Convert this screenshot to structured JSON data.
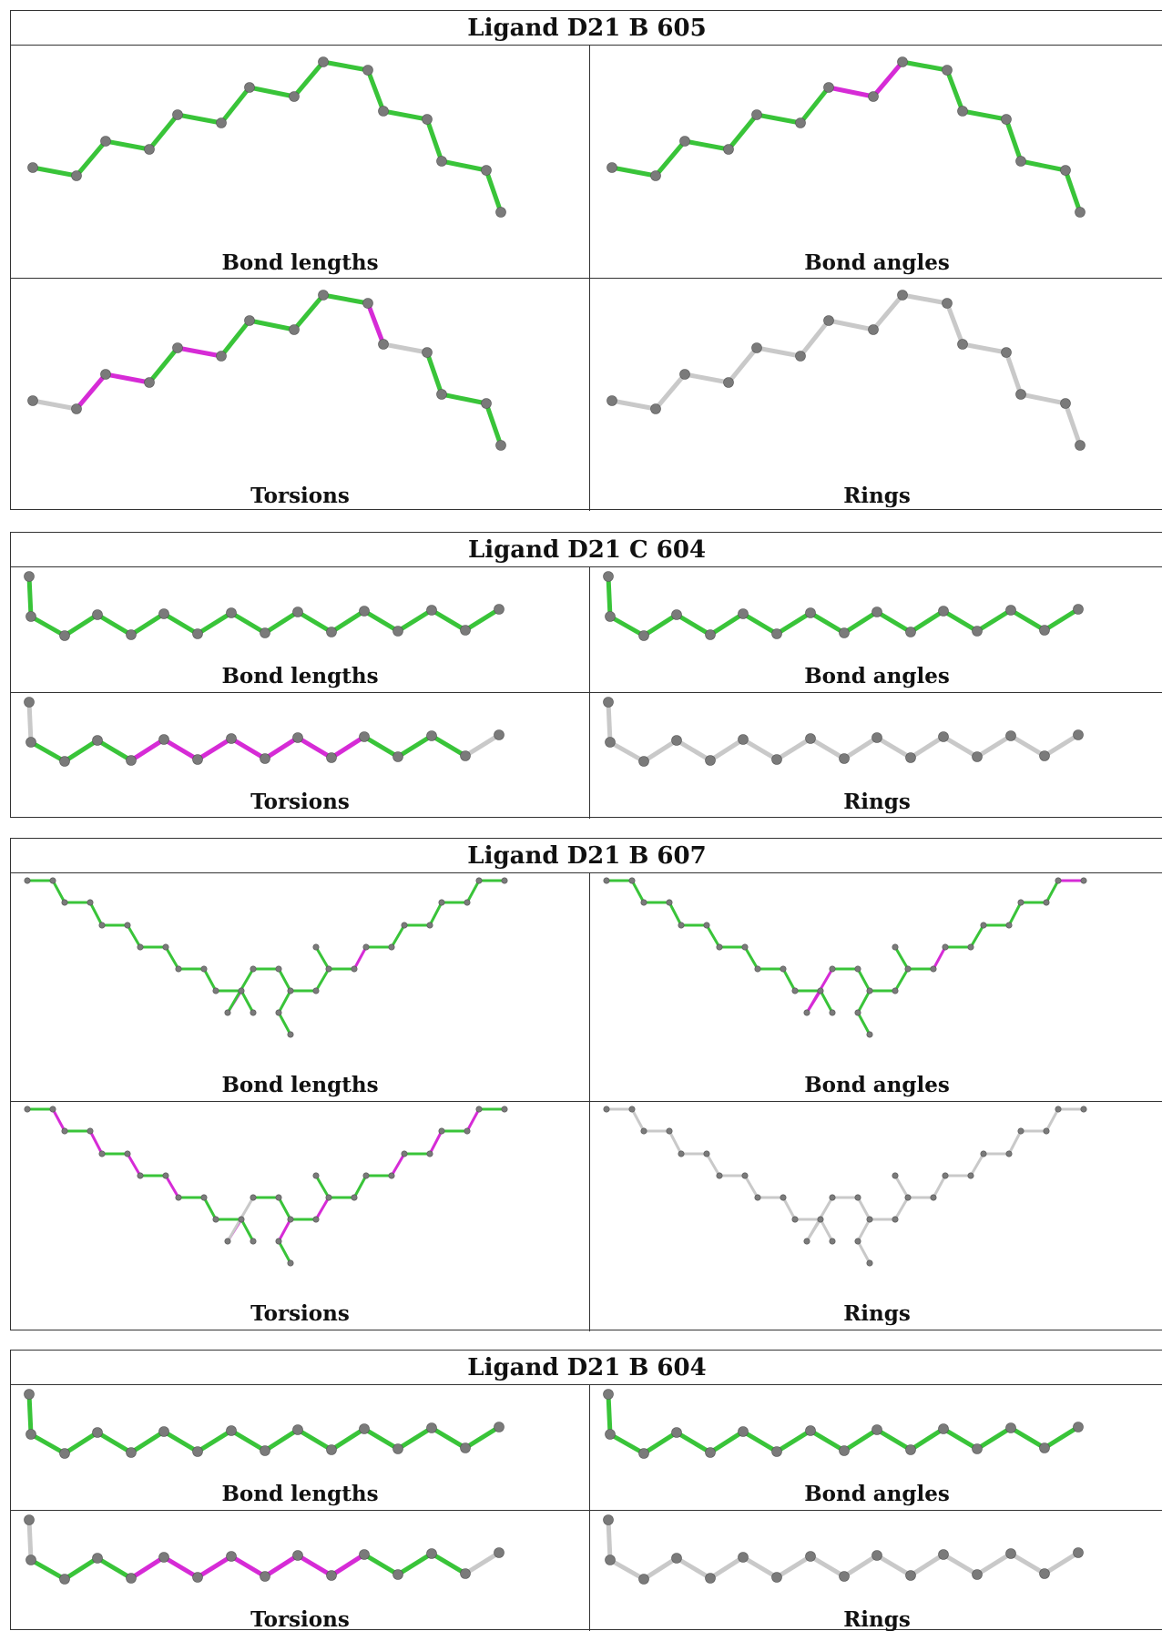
{
  "colors": {
    "ok": "#39c439",
    "outlier": "#d62bd6",
    "unassessed": "#c9c9c9",
    "atom": "#7a7a7a"
  },
  "ligands": [
    {
      "title": "Ligand D21 B 605",
      "panels": [
        {
          "caption": "Bond lengths",
          "bonds": "all-green"
        },
        {
          "caption": "Bond angles",
          "bonds": "green",
          "outliers": [
            6,
            7
          ]
        },
        {
          "caption": "Torsions",
          "bonds": "green",
          "outliers": [
            1,
            2,
            4,
            9
          ],
          "grey": [
            0,
            10
          ]
        },
        {
          "caption": "Rings",
          "bonds": "all-grey"
        }
      ]
    },
    {
      "title": "Ligand D21 C 604",
      "panels": [
        {
          "caption": "Bond lengths",
          "bonds": "all-green"
        },
        {
          "caption": "Bond angles",
          "bonds": "all-green"
        },
        {
          "caption": "Torsions",
          "bonds": "green",
          "outliers": [
            4,
            5,
            6,
            7,
            8,
            9,
            10
          ],
          "grey": [
            0,
            14
          ]
        },
        {
          "caption": "Rings",
          "bonds": "all-grey"
        }
      ]
    },
    {
      "title": "Ligand D21 B 607",
      "panels": [
        {
          "caption": "Bond lengths",
          "bonds": "green"
        },
        {
          "caption": "Bond angles",
          "bonds": "green"
        },
        {
          "caption": "Torsions",
          "bonds": "green"
        },
        {
          "caption": "Rings",
          "bonds": "all-grey"
        }
      ]
    },
    {
      "title": "Ligand D21 B 604",
      "panels": [
        {
          "caption": "Bond lengths",
          "bonds": "all-green"
        },
        {
          "caption": "Bond angles",
          "bonds": "all-green"
        },
        {
          "caption": "Torsions",
          "bonds": "green",
          "outliers": [
            4,
            5,
            6,
            7,
            8,
            9,
            10
          ],
          "grey": [
            0,
            14
          ]
        },
        {
          "caption": "Rings",
          "bonds": "all-grey"
        }
      ]
    }
  ]
}
